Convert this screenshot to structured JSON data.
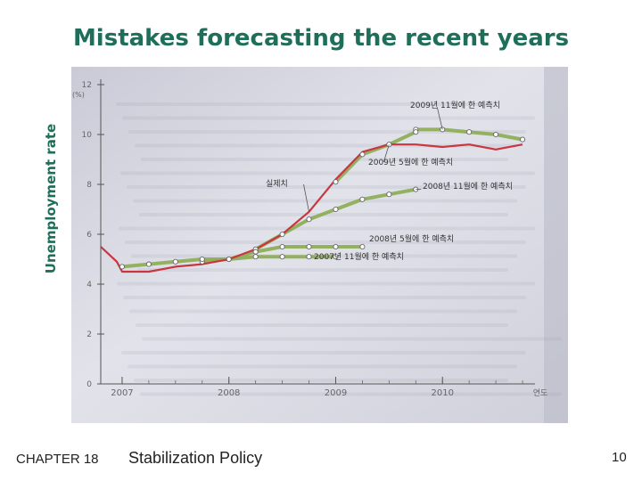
{
  "slide": {
    "title": "Mistakes forecasting the recent years",
    "ylabel": "Unemployment rate",
    "chapter": "CHAPTER 18",
    "topic": "Stabilization Policy",
    "page": "10"
  },
  "colors": {
    "title": "#1f6e5a",
    "paper": "#dcdde6",
    "actual": "#c93540",
    "forecast": "#8fae5a"
  },
  "chart_data": {
    "type": "line",
    "y_unit": "(%)",
    "x_unit": "연도",
    "ylim": [
      0,
      12
    ],
    "xlim": [
      2006.8,
      2010.95
    ],
    "y_ticks": [
      0,
      2,
      4,
      6,
      8,
      10,
      12
    ],
    "x_ticks": [
      {
        "label": "2007",
        "value": 2007.0
      },
      {
        "label": "2008",
        "value": 2008.0
      },
      {
        "label": "2009",
        "value": 2009.0
      },
      {
        "label": "2010",
        "value": 2010.0
      }
    ],
    "series": [
      {
        "name": "실제치",
        "role": "actual",
        "x": [
          2006.8,
          2006.95,
          2007.0,
          2007.25,
          2007.5,
          2007.75,
          2008.0,
          2008.25,
          2008.5,
          2008.75,
          2009.0,
          2009.25,
          2009.5,
          2009.75,
          2010.0,
          2010.25,
          2010.5,
          2010.75
        ],
        "values": [
          5.5,
          4.9,
          4.5,
          4.5,
          4.7,
          4.8,
          5.0,
          5.4,
          6.0,
          6.9,
          8.2,
          9.3,
          9.6,
          9.6,
          9.5,
          9.6,
          9.4,
          9.6
        ]
      },
      {
        "name": "2009년 11월에 한 예측치",
        "role": "forecast",
        "x": [
          2009.75,
          2010.0,
          2010.25,
          2010.5,
          2010.75
        ],
        "values": [
          10.2,
          10.2,
          10.1,
          10.0,
          9.8
        ]
      },
      {
        "name": "2009년 5월에 한 예측치",
        "role": "forecast",
        "x": [
          2009.0,
          2009.25,
          2009.5,
          2009.75
        ],
        "values": [
          8.1,
          9.2,
          9.6,
          10.1
        ]
      },
      {
        "name": "2008년 11월에 한 예측치",
        "role": "forecast",
        "x": [
          2008.25,
          2008.5,
          2008.75,
          2009.0,
          2009.25,
          2009.5,
          2009.75
        ],
        "values": [
          5.4,
          6.0,
          6.6,
          7.0,
          7.4,
          7.6,
          7.8
        ]
      },
      {
        "name": "2008년 5월에 한 예측치",
        "role": "forecast",
        "x": [
          2007.75,
          2008.0,
          2008.25,
          2008.5,
          2008.75,
          2009.0,
          2009.25
        ],
        "values": [
          4.9,
          5.0,
          5.3,
          5.5,
          5.5,
          5.5,
          5.5
        ]
      },
      {
        "name": "2007년 11월에 한 예측치",
        "role": "forecast",
        "x": [
          2007.0,
          2007.25,
          2007.5,
          2007.75,
          2008.0,
          2008.25,
          2008.5,
          2008.75,
          2009.0
        ],
        "values": [
          4.7,
          4.8,
          4.9,
          5.0,
          5.0,
          5.1,
          5.1,
          5.1,
          5.1
        ]
      }
    ]
  }
}
